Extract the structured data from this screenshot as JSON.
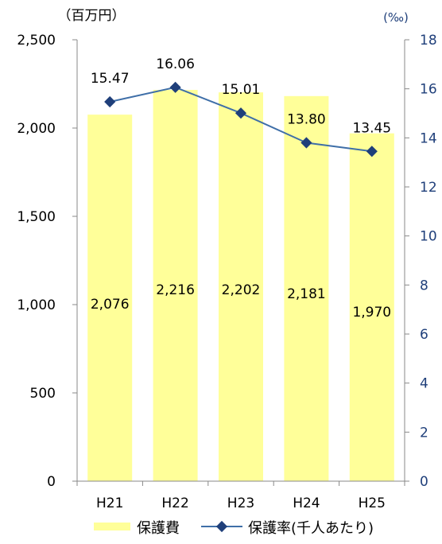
{
  "chart_data": {
    "type": "bar",
    "categories": [
      "H21",
      "H22",
      "H23",
      "H24",
      "H25"
    ],
    "left_axis": {
      "unit": "（百万円）",
      "ylim": [
        0,
        2500
      ],
      "ticks": [
        0,
        500,
        1000,
        1500,
        2000,
        2500
      ],
      "tick_labels": [
        "0",
        "500",
        "1,000",
        "1,500",
        "2,000",
        "2,500"
      ]
    },
    "right_axis": {
      "unit": "(‰)",
      "ylim": [
        0,
        18
      ],
      "ticks": [
        0,
        2,
        4,
        6,
        8,
        10,
        12,
        14,
        16,
        18
      ],
      "tick_labels": [
        "0",
        "2",
        "4",
        "6",
        "8",
        "10",
        "12",
        "14",
        "16",
        "18"
      ]
    },
    "series": [
      {
        "name": "保護費",
        "type": "bar",
        "axis": "left",
        "values": [
          2076,
          2216,
          2202,
          2181,
          1970
        ],
        "value_labels": [
          "2,076",
          "2,216",
          "2,202",
          "2,181",
          "1,970"
        ],
        "color": "#ffff99"
      },
      {
        "name": "保護率(千人あたり)",
        "type": "line",
        "axis": "right",
        "values": [
          15.47,
          16.06,
          15.01,
          13.8,
          13.45
        ],
        "value_labels": [
          "15.47",
          "16.06",
          "15.01",
          "13.80",
          "13.45"
        ],
        "color": "#3f6fa8",
        "marker_color": "#1f3f7a"
      }
    ],
    "legend": {
      "position": "bottom"
    },
    "grid": false
  }
}
